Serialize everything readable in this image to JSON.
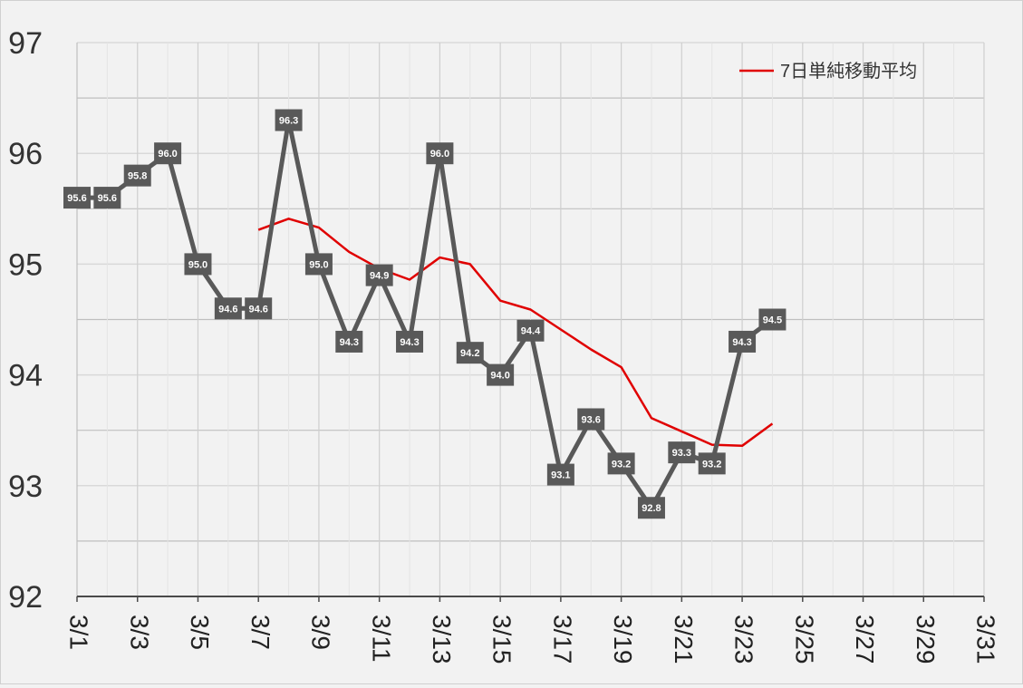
{
  "chart_data": {
    "type": "line",
    "title": "",
    "xlabel": "",
    "ylabel": "",
    "ylim": [
      92,
      97
    ],
    "yticks": [
      92,
      93,
      94,
      95,
      96,
      97
    ],
    "x_domain_days": [
      1,
      31
    ],
    "xtick_labels": [
      "3/1",
      "3/3",
      "3/5",
      "3/7",
      "3/9",
      "3/11",
      "3/13",
      "3/15",
      "3/17",
      "3/19",
      "3/21",
      "3/23",
      "3/25",
      "3/27",
      "3/29",
      "3/31"
    ],
    "grid": true,
    "legend_position": "top-right",
    "series": [
      {
        "name": "",
        "color": "#595959",
        "markers": "square",
        "data_labels": true,
        "x": [
          "3/1",
          "3/2",
          "3/3",
          "3/4",
          "3/5",
          "3/6",
          "3/7",
          "3/8",
          "3/9",
          "3/10",
          "3/11",
          "3/12",
          "3/13",
          "3/14",
          "3/15",
          "3/16",
          "3/17",
          "3/18",
          "3/19",
          "3/20",
          "3/21",
          "3/22",
          "3/23",
          "3/24"
        ],
        "values": [
          95.6,
          95.6,
          95.8,
          96.0,
          95.0,
          94.6,
          94.6,
          96.3,
          95.0,
          94.3,
          94.9,
          94.3,
          96.0,
          94.2,
          94.0,
          94.4,
          93.1,
          93.6,
          93.2,
          92.8,
          93.3,
          93.2,
          94.3,
          94.5
        ],
        "labels": [
          "95.6",
          "95.6",
          "95.8",
          "96.0",
          "95.0",
          "94.6",
          "94.6",
          "96.3",
          "95.0",
          "94.3",
          "94.9",
          "94.3",
          "96.0",
          "94.2",
          "94.0",
          "94.4",
          "93.1",
          "93.6",
          "93.2",
          "92.8",
          "93.3",
          "93.2",
          "94.3",
          "94.5"
        ]
      },
      {
        "name": "7日単純移動平均",
        "color": "#e00000",
        "markers": "none",
        "data_labels": false,
        "x": [
          "3/7",
          "3/8",
          "3/9",
          "3/10",
          "3/11",
          "3/12",
          "3/13",
          "3/14",
          "3/15",
          "3/16",
          "3/17",
          "3/18",
          "3/19",
          "3/20",
          "3/21",
          "3/22",
          "3/23",
          "3/24"
        ],
        "values": [
          95.31,
          95.41,
          95.33,
          95.11,
          94.96,
          94.86,
          95.06,
          95.0,
          94.67,
          94.59,
          94.41,
          94.23,
          94.07,
          93.61,
          93.49,
          93.37,
          93.36,
          93.56
        ]
      }
    ]
  }
}
